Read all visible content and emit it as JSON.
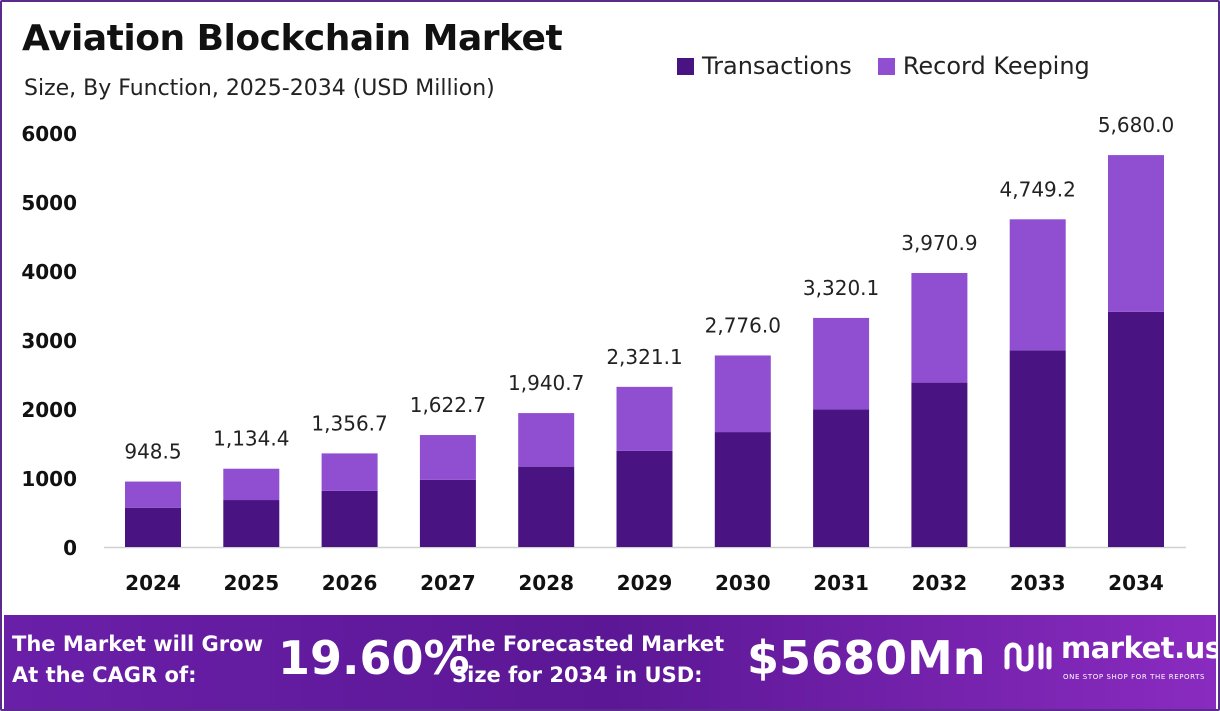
{
  "header": {
    "title": "Aviation Blockchain Market",
    "subtitle": "Size, By Function, 2025-2034 (USD Million)"
  },
  "legend": {
    "items": [
      {
        "label": "Transactions",
        "color": "#4a1382"
      },
      {
        "label": "Record Keeping",
        "color": "#8f4fd0"
      }
    ]
  },
  "chart_data": {
    "type": "bar",
    "stacked": true,
    "categories": [
      "2024",
      "2025",
      "2026",
      "2027",
      "2028",
      "2029",
      "2030",
      "2031",
      "2032",
      "2033",
      "2034"
    ],
    "series": [
      {
        "name": "Transactions",
        "color": "#4a1382",
        "values": [
          569.1,
          680.6,
          814.0,
          973.6,
          1164.4,
          1392.7,
          1665.6,
          1992.1,
          2382.5,
          2849.5,
          3408.0
        ]
      },
      {
        "name": "Record Keeping",
        "color": "#8f4fd0",
        "values": [
          379.4,
          453.8,
          542.7,
          649.1,
          776.3,
          928.4,
          1110.4,
          1328.0,
          1588.4,
          1899.7,
          2272.0
        ]
      }
    ],
    "totals": [
      948.5,
      1134.4,
      1356.7,
      1622.7,
      1940.7,
      2321.1,
      2776.0,
      3320.1,
      3970.9,
      4749.2,
      5680.0
    ],
    "total_labels": [
      "948.5",
      "1,134.4",
      "1,356.7",
      "1,622.7",
      "1,940.7",
      "2,321.1",
      "2,776.0",
      "3,320.1",
      "3,970.9",
      "4,749.2",
      "5,680.0"
    ],
    "y_ticks": [
      "0",
      "1000",
      "2000",
      "3000",
      "4000",
      "5000",
      "6000"
    ],
    "ylim": [
      0,
      6000
    ],
    "grid": false,
    "legend_position": "top-right"
  },
  "footer": {
    "cagr_label_line1": "The Market will Grow",
    "cagr_label_line2": "At the CAGR of:",
    "cagr_value": "19.60%",
    "forecast_label_line1": "The Forecasted Market",
    "forecast_label_line2": "Size for 2034 in USD:",
    "forecast_value": "$5680Mn",
    "brand_name": "market.us",
    "brand_tagline": "ONE STOP SHOP FOR THE REPORTS"
  }
}
